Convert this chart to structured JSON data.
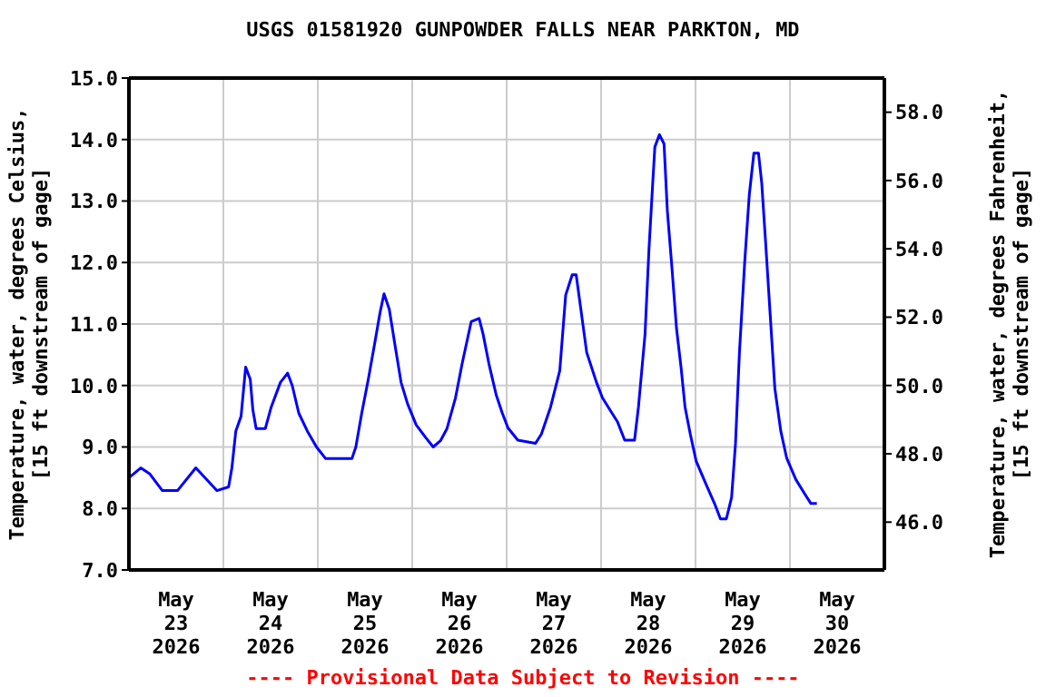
{
  "chart_data": {
    "type": "line",
    "title": "USGS 01581920 GUNPOWDER FALLS NEAR PARKTON, MD",
    "ylabel": "Temperature, water, degrees Celsius,\n[15 ft downstream of gage]",
    "y2label": "Temperature, water, degrees Fahrenheit,\n[15 ft downstream of gage]",
    "annotations": [
      "---- Provisional Data Subject to Revision ----"
    ],
    "x": [
      "2026-05-23T00:00",
      "2026-05-23T03:00",
      "2026-05-23T05:20",
      "2026-05-23T08:30",
      "2026-05-23T12:20",
      "2026-05-23T17:00",
      "2026-05-23T21:30",
      "2026-05-23T22:20",
      "2026-05-24T01:20",
      "2026-05-24T02:10",
      "2026-05-24T03:10",
      "2026-05-24T04:30",
      "2026-05-24T05:40",
      "2026-05-24T06:50",
      "2026-05-24T07:30",
      "2026-05-24T08:20",
      "2026-05-24T10:40",
      "2026-05-24T12:10",
      "2026-05-24T14:30",
      "2026-05-24T16:20",
      "2026-05-24T17:30",
      "2026-05-24T19:10",
      "2026-05-24T21:20",
      "2026-05-24T23:40",
      "2026-05-25T02:00",
      "2026-05-25T08:40",
      "2026-05-25T09:40",
      "2026-05-25T11:10",
      "2026-05-25T12:50",
      "2026-05-25T14:20",
      "2026-05-25T15:50",
      "2026-05-25T16:50",
      "2026-05-25T18:10",
      "2026-05-25T19:40",
      "2026-05-25T21:10",
      "2026-05-25T22:50",
      "2026-05-26T01:00",
      "2026-05-26T03:20",
      "2026-05-26T05:20",
      "2026-05-26T07:10",
      "2026-05-26T08:50",
      "2026-05-26T11:00",
      "2026-05-26T12:40",
      "2026-05-26T15:00",
      "2026-05-26T17:00",
      "2026-05-26T18:00",
      "2026-05-26T19:30",
      "2026-05-26T21:20",
      "2026-05-26T22:50",
      "2026-05-27T00:20",
      "2026-05-27T02:50",
      "2026-05-27T07:20",
      "2026-05-27T08:50",
      "2026-05-27T11:10",
      "2026-05-27T13:30",
      "2026-05-27T15:00",
      "2026-05-27T16:40",
      "2026-05-27T17:40",
      "2026-05-27T18:40",
      "2026-05-27T20:20",
      "2026-05-27T22:50",
      "2026-05-28T00:20",
      "2026-05-28T02:40",
      "2026-05-28T04:10",
      "2026-05-28T06:00",
      "2026-05-28T08:30",
      "2026-05-28T09:30",
      "2026-05-28T11:10",
      "2026-05-28T12:10",
      "2026-05-28T13:10",
      "2026-05-28T13:40",
      "2026-05-28T14:50",
      "2026-05-28T16:00",
      "2026-05-28T16:50",
      "2026-05-28T18:00",
      "2026-05-28T19:10",
      "2026-05-28T20:20",
      "2026-05-28T21:20",
      "2026-05-28T22:40",
      "2026-05-29T00:10",
      "2026-05-29T02:30",
      "2026-05-29T04:50",
      "2026-05-29T06:20",
      "2026-05-29T07:50",
      "2026-05-29T09:10",
      "2026-05-29T10:10",
      "2026-05-29T11:10",
      "2026-05-29T12:30",
      "2026-05-29T13:40",
      "2026-05-29T14:50",
      "2026-05-29T16:00",
      "2026-05-29T16:50",
      "2026-05-29T17:50",
      "2026-05-29T19:00",
      "2026-05-29T20:10",
      "2026-05-29T21:40",
      "2026-05-29T23:10",
      "2026-05-30T01:30",
      "2026-05-30T03:50",
      "2026-05-30T05:20",
      "2026-05-30T06:50"
    ],
    "series": [
      {
        "color": "#0000ff",
        "values": [
          8.5,
          8.66,
          8.56,
          8.29,
          8.29,
          8.66,
          8.35,
          8.29,
          8.35,
          8.66,
          9.26,
          9.5,
          10.3,
          10.1,
          9.6,
          9.3,
          9.3,
          9.65,
          10.05,
          10.2,
          10.0,
          9.55,
          9.26,
          9.0,
          8.81,
          8.81,
          9.0,
          9.55,
          10.1,
          10.64,
          11.19,
          11.49,
          11.24,
          10.64,
          10.05,
          9.7,
          9.36,
          9.16,
          9.0,
          9.1,
          9.3,
          9.8,
          10.35,
          11.04,
          11.09,
          10.84,
          10.35,
          9.85,
          9.56,
          9.31,
          9.11,
          9.06,
          9.21,
          9.65,
          10.24,
          11.47,
          11.8,
          11.8,
          11.33,
          10.54,
          10.05,
          9.8,
          9.56,
          9.41,
          9.11,
          9.11,
          9.65,
          10.83,
          12.21,
          13.34,
          13.88,
          14.08,
          13.93,
          12.85,
          11.92,
          10.93,
          10.29,
          9.65,
          9.21,
          8.77,
          8.42,
          8.08,
          7.83,
          7.83,
          8.18,
          9.06,
          10.54,
          12.01,
          13.1,
          13.78,
          13.78,
          13.29,
          12.31,
          11.13,
          9.95,
          9.26,
          8.82,
          8.47,
          8.23,
          8.08,
          8.08
        ]
      }
    ],
    "xlim": [
      "2026-05-23T00:00",
      "2026-05-31T00:00"
    ],
    "xticks": [
      {
        "value": "2026-05-23T12:00",
        "label": "May\n23\n2026"
      },
      {
        "value": "2026-05-24T00:00",
        "label": null
      },
      {
        "value": "2026-05-24T12:00",
        "label": "May\n24\n2026"
      },
      {
        "value": "2026-05-25T00:00",
        "label": null
      },
      {
        "value": "2026-05-25T12:00",
        "label": "May\n25\n2026"
      },
      {
        "value": "2026-05-26T00:00",
        "label": null
      },
      {
        "value": "2026-05-26T12:00",
        "label": "May\n26\n2026"
      },
      {
        "value": "2026-05-27T00:00",
        "label": null
      },
      {
        "value": "2026-05-27T12:00",
        "label": "May\n27\n2026"
      },
      {
        "value": "2026-05-28T00:00",
        "label": null
      },
      {
        "value": "2026-05-28T12:00",
        "label": "May\n28\n2026"
      },
      {
        "value": "2026-05-29T00:00",
        "label": null
      },
      {
        "value": "2026-05-29T12:00",
        "label": "May\n29\n2026"
      },
      {
        "value": "2026-05-30T00:00",
        "label": null
      },
      {
        "value": "2026-05-30T12:00",
        "label": "May\n30\n2026"
      }
    ],
    "ylim": [
      7,
      15
    ],
    "yticks": [
      {
        "value": 7,
        "label": "7.0"
      },
      {
        "value": 8,
        "label": "8.0"
      },
      {
        "value": 9,
        "label": "9.0"
      },
      {
        "value": 10,
        "label": "10.0"
      },
      {
        "value": 11,
        "label": "11.0"
      },
      {
        "value": 12,
        "label": "12.0"
      },
      {
        "value": 13,
        "label": "13.0"
      },
      {
        "value": 14,
        "label": "14.0"
      },
      {
        "value": 15,
        "label": "15.0"
      }
    ],
    "y2lim": [
      44.6,
      59
    ],
    "y2ticks": [
      {
        "value": 46,
        "label": "46.0"
      },
      {
        "value": 48,
        "label": "48.0"
      },
      {
        "value": 50,
        "label": "50.0"
      },
      {
        "value": 52,
        "label": "52.0"
      },
      {
        "value": 54,
        "label": "54.0"
      },
      {
        "value": 56,
        "label": "56.0"
      },
      {
        "value": 58,
        "label": "58.0"
      }
    ],
    "grid": true,
    "legend": false,
    "marker": "none",
    "line_style": "solid"
  }
}
